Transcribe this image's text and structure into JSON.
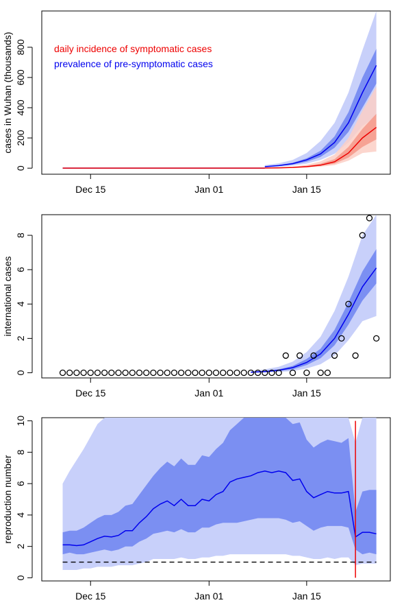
{
  "chart_data": [
    {
      "type": "line",
      "ylabel": "cases in Wuhan (thousands)",
      "xlabel": "",
      "x_ticks": [
        "Dec 15",
        "Jan 01",
        "Jan 15"
      ],
      "x_tick_days": [
        15,
        32,
        46
      ],
      "y_ticks": [
        0,
        200,
        400,
        600,
        800
      ],
      "xlim": [
        8,
        58
      ],
      "ylim": [
        -40,
        1040
      ],
      "legend": {
        "placement": "top-left",
        "entries": [
          {
            "label": "daily incidence of symptomatic cases",
            "color": "#ee0000"
          },
          {
            "label": "prevalence of pre-symptomatic cases",
            "color": "#0000ee"
          }
        ]
      },
      "x_days": [
        40,
        42,
        44,
        46,
        48,
        50,
        52,
        54,
        56
      ],
      "series": [
        {
          "name": "daily incidence of symptomatic cases",
          "color": "#ee0000",
          "median": [
            1,
            2,
            5,
            10,
            20,
            42,
            100,
            200,
            270
          ],
          "band50_lo": [
            0,
            1,
            3,
            7,
            15,
            30,
            70,
            140,
            190
          ],
          "band50_hi": [
            2,
            3,
            7,
            15,
            30,
            60,
            140,
            260,
            360
          ],
          "band95_lo": [
            0,
            0,
            2,
            4,
            10,
            20,
            50,
            100,
            110
          ],
          "band95_hi": [
            3,
            5,
            10,
            22,
            45,
            90,
            200,
            380,
            540
          ]
        },
        {
          "name": "prevalence of pre-symptomatic cases",
          "color": "#0000ee",
          "median": [
            10,
            17,
            30,
            55,
            95,
            170,
            300,
            500,
            680
          ],
          "band50_lo": [
            8,
            13,
            24,
            42,
            75,
            135,
            240,
            400,
            560
          ],
          "band50_hi": [
            12,
            20,
            36,
            65,
            115,
            210,
            370,
            600,
            790
          ],
          "band95_lo": [
            5,
            9,
            17,
            30,
            55,
            95,
            170,
            280,
            340
          ],
          "band95_hi": [
            20,
            32,
            55,
            100,
            180,
            300,
            500,
            780,
            1040
          ]
        }
      ]
    },
    {
      "type": "scatter",
      "ylabel": "international cases",
      "xlabel": "",
      "x_ticks": [
        "Dec 15",
        "Jan 01",
        "Jan 15"
      ],
      "x_tick_days": [
        15,
        32,
        46
      ],
      "y_ticks": [
        0,
        2,
        4,
        6,
        8
      ],
      "xlim": [
        8,
        58
      ],
      "ylim": [
        -0.3,
        9.2
      ],
      "observed_x_days": [
        11,
        12,
        13,
        14,
        15,
        16,
        17,
        18,
        19,
        20,
        21,
        22,
        23,
        24,
        25,
        26,
        27,
        28,
        29,
        30,
        31,
        32,
        33,
        34,
        35,
        36,
        37,
        38,
        39,
        40,
        41,
        42,
        43,
        44,
        45,
        46,
        47,
        48,
        49,
        50,
        51,
        52,
        53,
        54,
        55,
        56
      ],
      "observed_counts": [
        0,
        0,
        0,
        0,
        0,
        0,
        0,
        0,
        0,
        0,
        0,
        0,
        0,
        0,
        0,
        0,
        0,
        0,
        0,
        0,
        0,
        0,
        0,
        0,
        0,
        0,
        0,
        0,
        0,
        0,
        0,
        0,
        1,
        0,
        1,
        0,
        1,
        0,
        0,
        1,
        2,
        4,
        1,
        8,
        9,
        2
      ],
      "fit_x_days": [
        38,
        40,
        42,
        44,
        46,
        48,
        50,
        52,
        54,
        56
      ],
      "fit_median": [
        0.03,
        0.07,
        0.15,
        0.3,
        0.6,
        1.1,
        2.0,
        3.4,
        5.0,
        6.1
      ],
      "band50_lo": [
        0.01,
        0.04,
        0.1,
        0.2,
        0.45,
        0.85,
        1.6,
        2.8,
        4.2,
        5.2
      ],
      "band50_hi": [
        0.05,
        0.1,
        0.2,
        0.4,
        0.8,
        1.4,
        2.5,
        4.1,
        5.9,
        7.2
      ],
      "band95_lo": [
        0.0,
        0.02,
        0.05,
        0.1,
        0.25,
        0.5,
        1.0,
        1.9,
        3.0,
        3.3
      ],
      "band95_hi": [
        0.1,
        0.2,
        0.35,
        0.65,
        1.2,
        2.1,
        3.6,
        5.6,
        8.0,
        9.2
      ]
    },
    {
      "type": "line",
      "ylabel": "reproduction number",
      "xlabel": "",
      "x_ticks": [
        "Dec 15",
        "Jan 01",
        "Jan 15"
      ],
      "x_tick_days": [
        15,
        32,
        46
      ],
      "y_ticks": [
        0,
        2,
        4,
        6,
        8,
        10
      ],
      "xlim": [
        8,
        58
      ],
      "ylim": [
        -0.2,
        10.2
      ],
      "reference_line": {
        "y": 1,
        "style": "dashed"
      },
      "vertical_line": {
        "x_day": 53,
        "y_range": [
          0,
          10
        ],
        "color": "#ee0000"
      },
      "x_days": [
        11,
        12,
        13,
        14,
        15,
        16,
        17,
        18,
        19,
        20,
        21,
        22,
        23,
        24,
        25,
        26,
        27,
        28,
        29,
        30,
        31,
        32,
        33,
        34,
        35,
        36,
        37,
        38,
        39,
        40,
        41,
        42,
        43,
        44,
        45,
        46,
        47,
        48,
        49,
        50,
        51,
        52,
        53,
        54,
        55,
        56
      ],
      "median": [
        2.1,
        2.1,
        2.05,
        2.1,
        2.3,
        2.5,
        2.65,
        2.6,
        2.7,
        3.0,
        3.0,
        3.5,
        3.9,
        4.4,
        4.7,
        4.9,
        4.6,
        5.0,
        4.6,
        4.6,
        5.0,
        4.9,
        5.3,
        5.5,
        6.1,
        6.3,
        6.4,
        6.5,
        6.7,
        6.8,
        6.7,
        6.8,
        6.7,
        6.2,
        6.3,
        5.5,
        5.1,
        5.3,
        5.5,
        5.4,
        5.4,
        5.5,
        2.6,
        2.9,
        2.9,
        2.8
      ],
      "band50_lo": [
        1.5,
        1.6,
        1.5,
        1.5,
        1.6,
        1.7,
        1.8,
        1.7,
        1.8,
        2.0,
        2.0,
        2.3,
        2.5,
        2.8,
        2.9,
        3.0,
        2.9,
        3.1,
        2.9,
        2.9,
        3.2,
        3.2,
        3.4,
        3.5,
        3.5,
        3.5,
        3.6,
        3.7,
        3.8,
        3.8,
        3.8,
        3.8,
        3.7,
        3.5,
        3.6,
        3.3,
        3.0,
        3.2,
        3.3,
        3.3,
        3.3,
        3.2,
        1.8,
        1.5,
        1.6,
        1.5
      ],
      "band50_hi": [
        2.9,
        3.0,
        3.0,
        3.2,
        3.5,
        3.8,
        4.0,
        4.0,
        4.2,
        4.6,
        4.7,
        5.3,
        5.9,
        6.5,
        7.0,
        7.4,
        7.1,
        7.6,
        7.2,
        7.2,
        7.8,
        7.7,
        8.2,
        8.6,
        9.4,
        9.8,
        10.2,
        10.2,
        10.2,
        10.2,
        10.2,
        10.2,
        10.2,
        9.8,
        9.9,
        8.8,
        8.3,
        8.6,
        8.8,
        8.7,
        8.6,
        8.9,
        4.2,
        5.5,
        5.6,
        5.6
      ],
      "band95_lo": [
        0.5,
        0.5,
        0.5,
        0.6,
        0.6,
        0.7,
        0.7,
        0.7,
        0.8,
        0.8,
        0.8,
        0.9,
        1.0,
        1.2,
        1.2,
        1.2,
        1.2,
        1.3,
        1.2,
        1.2,
        1.3,
        1.3,
        1.4,
        1.4,
        1.5,
        1.5,
        1.5,
        1.5,
        1.5,
        1.5,
        1.5,
        1.5,
        1.5,
        1.4,
        1.4,
        1.3,
        1.2,
        1.2,
        1.3,
        1.2,
        1.3,
        1.3,
        0.8,
        0.9,
        0.9,
        0.9
      ],
      "band95_hi": [
        6.0,
        6.8,
        7.5,
        8.2,
        9.0,
        9.8,
        10.2,
        10.2,
        10.2,
        10.2,
        10.2,
        10.2,
        10.2,
        10.2,
        10.2,
        10.2,
        10.2,
        10.2,
        10.2,
        10.2,
        10.2,
        10.2,
        10.2,
        10.2,
        10.2,
        10.2,
        10.2,
        10.2,
        10.2,
        10.2,
        10.2,
        10.2,
        10.2,
        10.2,
        10.2,
        10.2,
        10.2,
        10.2,
        10.2,
        10.2,
        10.2,
        10.2,
        8.6,
        10.2,
        10.2,
        10.2
      ]
    }
  ]
}
